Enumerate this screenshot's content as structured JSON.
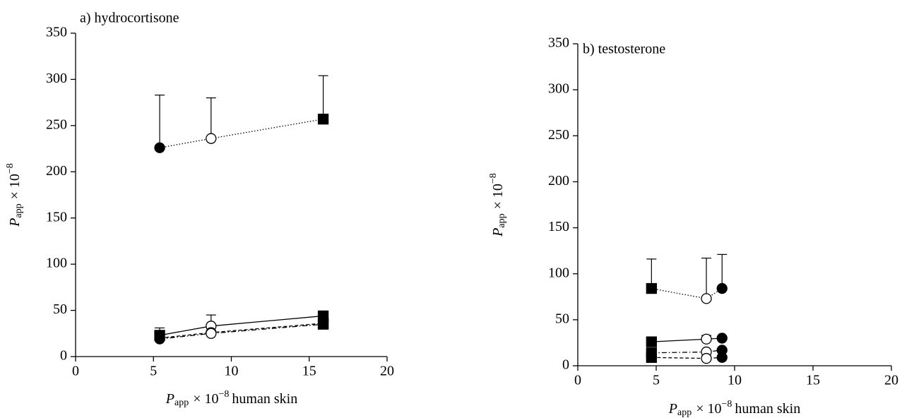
{
  "chart_data": [
    {
      "type": "line",
      "title": "a) hydrocortisone",
      "xlabel": [
        "P",
        "app",
        "× 10",
        "−8",
        "human skin"
      ],
      "ylabel": [
        "P",
        "app",
        "× 10",
        "−8"
      ],
      "x": [
        5.4,
        8.7,
        15.9
      ],
      "xlim": [
        0,
        20
      ],
      "xticks": [
        0,
        5,
        10,
        15,
        20
      ],
      "ylim": [
        0,
        350
      ],
      "yticks": [
        0,
        50,
        100,
        150,
        200,
        250,
        300,
        350
      ],
      "series": [
        {
          "dash": "dotted",
          "color": "#000000",
          "values": [
            226,
            236,
            257
          ],
          "errors": [
            57,
            44,
            47
          ],
          "markers": [
            "circle-filled",
            "circle-open",
            "square-filled"
          ]
        },
        {
          "dash": "solid",
          "color": "#000000",
          "values": [
            23,
            33,
            44
          ],
          "errors": [
            8,
            12,
            null
          ],
          "markers": [
            "square-filled",
            "circle-open",
            "square-filled"
          ]
        },
        {
          "dash": "dashed",
          "color": "#000000",
          "values": [
            20,
            26,
            36
          ],
          "markers": [
            "circle-filled",
            "circle-open",
            "square-filled"
          ]
        },
        {
          "dash": "dashdot",
          "color": "#000000",
          "values": [
            19,
            25,
            35
          ],
          "markers": [
            "circle-filled",
            "circle-open",
            "square-filled"
          ]
        }
      ]
    },
    {
      "type": "line",
      "title": "b) testosterone",
      "xlabel": [
        "P",
        "app",
        "× 10",
        "−8",
        "human skin"
      ],
      "ylabel": [
        "P",
        "app",
        "× 10",
        "−8"
      ],
      "x": [
        4.7,
        8.2,
        9.2
      ],
      "xlim": [
        0,
        20
      ],
      "xticks": [
        0,
        5,
        10,
        15,
        20
      ],
      "ylim": [
        0,
        350
      ],
      "yticks": [
        0,
        50,
        100,
        150,
        200,
        250,
        300,
        350
      ],
      "series": [
        {
          "dash": "dotted",
          "color": "#000000",
          "values": [
            84,
            73,
            84
          ],
          "errors": [
            32,
            44,
            37
          ],
          "markers": [
            "square-filled",
            "circle-open",
            "circle-filled"
          ]
        },
        {
          "dash": "solid",
          "color": "#000000",
          "values": [
            26,
            29,
            30
          ],
          "errors": [
            null,
            4,
            null
          ],
          "markers": [
            "square-filled",
            "circle-open",
            "circle-filled"
          ]
        },
        {
          "dash": "dashdot",
          "color": "#000000",
          "values": [
            14,
            15,
            17
          ],
          "markers": [
            "square-filled",
            "circle-open",
            "circle-filled"
          ]
        },
        {
          "dash": "dashed",
          "color": "#000000",
          "values": [
            9,
            8,
            9
          ],
          "markers": [
            "square-filled",
            "circle-open",
            "circle-filled"
          ]
        }
      ]
    }
  ]
}
